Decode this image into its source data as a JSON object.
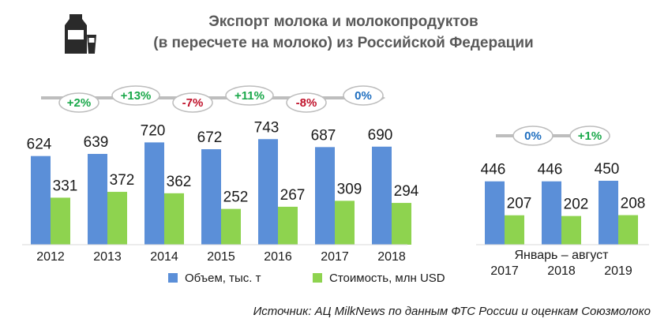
{
  "title_lines": [
    "Экспорт молока и молокопродуктов",
    "(в пересчете на молоко) из Российской Федерации"
  ],
  "source": "Источник: АЦ MilkNews по данным ФТС России и оценкам Союзмолоко",
  "icon": "milk-carton-and-glass-icon",
  "colors": {
    "volume": "#5b8fd8",
    "value": "#8ed34f",
    "positive": "#1aa84a",
    "negative": "#c0122b",
    "neutral": "#1f6fc0",
    "arrow": "#bdbdbd"
  },
  "chart_data": [
    {
      "type": "bar",
      "title": "",
      "categories": [
        "2012",
        "2013",
        "2014",
        "2015",
        "2016",
        "2017",
        "2018"
      ],
      "series": [
        {
          "name": "Объем, тыс. т",
          "values": [
            624,
            639,
            720,
            672,
            743,
            687,
            690
          ]
        },
        {
          "name": "Стоимость, млн USD",
          "values": [
            331,
            372,
            362,
            252,
            267,
            309,
            294
          ]
        }
      ],
      "changes": [
        "+2%",
        "+13%",
        "-7%",
        "+11%",
        "-8%",
        "0%"
      ],
      "ylim": [
        0,
        800
      ]
    },
    {
      "type": "bar",
      "title": "",
      "group_label": "Январь – август",
      "categories": [
        "2017",
        "2018",
        "2019"
      ],
      "series": [
        {
          "name": "Объем, тыс. т",
          "values": [
            446,
            446,
            450
          ]
        },
        {
          "name": "Стоимость, млн USD",
          "values": [
            207,
            202,
            208
          ]
        }
      ],
      "changes": [
        "0%",
        "+1%"
      ],
      "ylim": [
        0,
        800
      ]
    }
  ],
  "legend": [
    {
      "label": "Объем, тыс. т",
      "color": "#5b8fd8"
    },
    {
      "label": "Стоимость, млн USD",
      "color": "#8ed34f"
    }
  ]
}
